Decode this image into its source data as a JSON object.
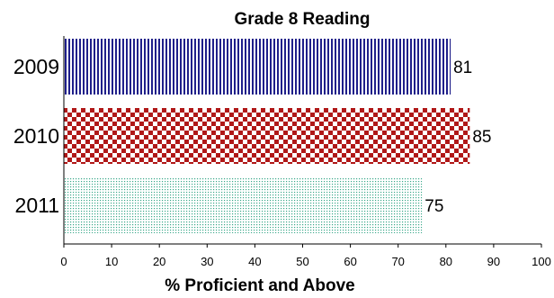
{
  "chart_data": {
    "type": "bar",
    "orientation": "horizontal",
    "title": "Grade 8 Reading",
    "xlabel": "% Proficient and Above",
    "ylabel": "",
    "xlim": [
      0,
      100
    ],
    "x_ticks": [
      "0",
      "10",
      "20",
      "30",
      "40",
      "50",
      "60",
      "70",
      "80",
      "90",
      "100"
    ],
    "categories": [
      "2009",
      "2010",
      "2011"
    ],
    "values": [
      81,
      85,
      75
    ],
    "data_labels": [
      "81",
      "85",
      "75"
    ],
    "grid": false,
    "legend": "none",
    "bar_colors": [
      "#1f1f8a",
      "#b01818",
      "#3aa88a"
    ],
    "bar_patterns": [
      "vertical-stripes",
      "checkerboard",
      "dots"
    ]
  }
}
